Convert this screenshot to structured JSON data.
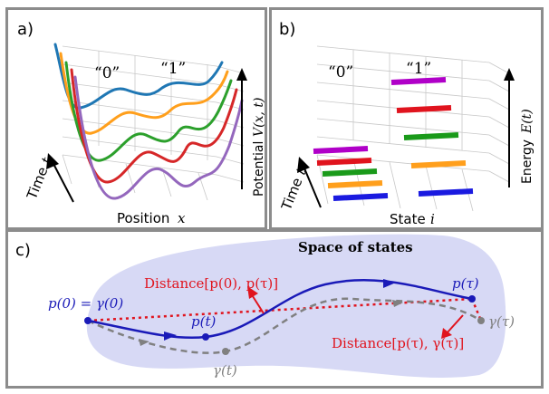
{
  "panel_a": {
    "label": "a)",
    "state0": "“0”",
    "state1": "“1”",
    "xaxis": "Position",
    "xvar": "x",
    "yaxis": "Potential",
    "yvar": "V(x, t)",
    "taxis": "Time",
    "tvar": "t"
  },
  "panel_b": {
    "label": "b)",
    "state0": "“0”",
    "state1": "“1”",
    "xaxis": "State",
    "xvar": "i",
    "yaxis": "Energy",
    "yvar": "E(t)",
    "taxis": "Time",
    "tvar": "t"
  },
  "panel_c": {
    "label": "c)",
    "title": "Space of states",
    "dist_p0_ptau": "Distance[p(0), p(τ)]",
    "dist_ptau_gtau": "Distance[p(τ), γ(τ)]",
    "p0": "p(0) = γ(0)",
    "pt": "p(t)",
    "ptau": "p(τ)",
    "gt": "γ(t)",
    "gtau": "γ(τ)"
  },
  "colors": {
    "series": [
      "#9467bd",
      "#d62728",
      "#2ca02c",
      "#ff9f1c",
      "#1f77b4"
    ],
    "blue_path": "#1a1ab8",
    "red": "#e0141e",
    "gray": "#808080",
    "blob": "#d6d8f4"
  }
}
